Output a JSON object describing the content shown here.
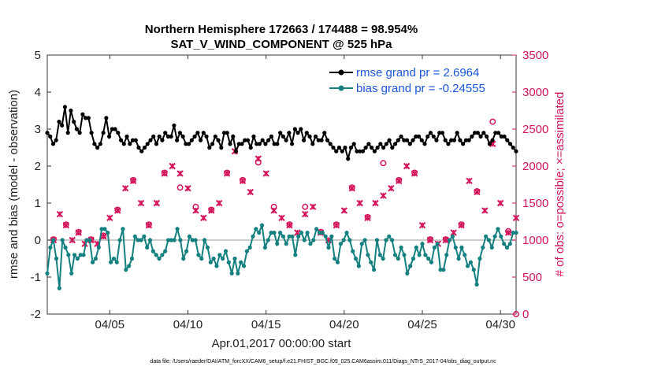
{
  "chart_data": {
    "type": "line",
    "title": "Northern Hemisphere 172663 / 174488 = 98.954%",
    "subtitle": "SAT_V_WIND_COMPONENT @ 525 hPa",
    "xlabel": "Apr.01,2017 00:00:00 start",
    "ylabel": "rmse and bias (model - observation)",
    "y2label": "# of obs: o=possible; ×=assimilated",
    "xlim": [
      1,
      31
    ],
    "ylim": [
      -2,
      5
    ],
    "y2lim": [
      0,
      3500
    ],
    "x_ticks": [
      5,
      10,
      15,
      20,
      25,
      30
    ],
    "x_tick_labels": [
      "04/05",
      "04/10",
      "04/15",
      "04/20",
      "04/25",
      "04/30"
    ],
    "y_ticks": [
      -2,
      -1,
      0,
      1,
      2,
      3,
      4,
      5
    ],
    "y2_ticks": [
      0,
      500,
      1000,
      1500,
      2000,
      2500,
      3000,
      3500
    ],
    "grid": false,
    "legend_position": "top-right",
    "colors": {
      "rmse": "#000000",
      "bias": "#148080",
      "obs": "#d4145a",
      "zero_line": "#cccccc",
      "legend_text": "#1a56db"
    },
    "series": [
      {
        "name": "rmse grand pr = 2.6964",
        "axis": "left",
        "values": [
          2.9,
          2.8,
          2.6,
          2.7,
          3.2,
          3.1,
          3.6,
          2.9,
          3.5,
          3.2,
          3.0,
          2.9,
          3.4,
          3.3,
          3.3,
          2.9,
          2.6,
          2.5,
          2.6,
          2.9,
          3.3,
          2.8,
          3.0,
          3.0,
          2.9,
          2.7,
          2.6,
          2.8,
          2.6,
          2.7,
          2.7,
          2.5,
          2.4,
          2.5,
          2.6,
          2.7,
          2.8,
          2.6,
          2.8,
          2.7,
          2.9,
          2.8,
          2.8,
          3.1,
          2.7,
          2.9,
          2.8,
          2.6,
          2.6,
          2.7,
          2.8,
          2.9,
          2.7,
          2.9,
          2.8,
          2.5,
          2.6,
          2.8,
          2.7,
          2.5,
          2.9,
          2.9,
          2.6,
          2.8,
          2.4,
          2.6,
          2.6,
          2.7,
          2.7,
          2.5,
          2.8,
          2.6,
          2.6,
          2.7,
          2.6,
          2.7,
          2.8,
          2.6,
          2.6,
          2.9,
          2.8,
          2.7,
          2.9,
          2.6,
          3.0,
          2.9,
          3.0,
          2.7,
          2.9,
          2.8,
          2.6,
          2.8,
          2.7,
          2.7,
          2.9,
          2.7,
          2.6,
          2.5,
          2.4,
          2.5,
          2.4,
          2.5,
          2.2,
          2.5,
          2.6,
          2.4,
          2.4,
          2.4,
          2.5,
          2.6,
          2.5,
          2.4,
          2.5,
          2.6,
          2.5,
          2.6,
          2.7,
          2.5,
          2.6,
          2.7,
          2.8,
          2.7,
          2.7,
          2.6,
          2.7,
          2.8,
          2.8,
          2.7,
          2.6,
          2.8,
          2.9,
          2.8,
          2.7,
          2.9,
          2.9,
          2.7,
          2.6,
          2.7,
          2.7,
          2.9,
          2.7,
          2.6,
          2.7,
          2.7,
          2.8,
          2.9,
          2.9,
          2.8,
          2.9,
          2.8,
          2.6,
          2.7,
          2.9,
          2.9,
          2.8,
          2.8,
          2.7,
          2.6,
          2.5,
          2.4
        ]
      },
      {
        "name": "bias grand pr = -0.24555",
        "axis": "left",
        "values": [
          -0.9,
          -0.2,
          0.0,
          -0.5,
          -1.3,
          0.0,
          -0.2,
          -0.4,
          -0.9,
          -0.4,
          -0.5,
          -0.4,
          -0.4,
          0.0,
          0.0,
          -0.6,
          -0.5,
          -0.2,
          0.3,
          0.3,
          0.2,
          -0.6,
          -0.5,
          -0.6,
          0.0,
          0.3,
          -0.8,
          -0.7,
          -0.5,
          0.1,
          0.0,
          0.0,
          0.1,
          -0.2,
          0.0,
          -0.3,
          -0.4,
          -0.5,
          -0.4,
          -0.3,
          0.0,
          0.0,
          0.0,
          0.3,
          0.0,
          -0.5,
          -0.3,
          0.1,
          0.0,
          0.0,
          -0.4,
          -0.5,
          0.0,
          -0.2,
          -0.6,
          -0.5,
          -0.7,
          -0.4,
          -0.5,
          -0.3,
          -0.6,
          -0.9,
          -0.5,
          -0.9,
          -0.6,
          -0.7,
          -0.3,
          -0.2,
          0.1,
          0.3,
          0.2,
          0.4,
          -0.2,
          0.0,
          0.2,
          0.2,
          -0.1,
          0.2,
          0.1,
          -0.1,
          0.1,
          0.1,
          -0.4,
          0.1,
          0.2,
          0.0,
          0.2,
          -0.1,
          0.0,
          0.3,
          0.2,
          0.2,
          0.1,
          -0.2,
          0.1,
          -0.5,
          -0.6,
          -0.1,
          0.0,
          0.2,
          0.0,
          -0.3,
          -0.5,
          -0.7,
          -0.1,
          0.0,
          -0.4,
          -0.6,
          -0.8,
          0.0,
          -0.4,
          -0.5,
          0.0,
          0.1,
          0.0,
          -0.4,
          -0.5,
          -0.2,
          -0.4,
          -0.9,
          -0.7,
          -0.5,
          -0.2,
          -0.4,
          -0.1,
          -0.4,
          -0.5,
          -0.6,
          -0.2,
          -0.1,
          -0.8,
          -0.8,
          -0.4,
          0.0,
          0.1,
          -0.2,
          -0.5,
          -0.2,
          -0.4,
          -0.7,
          -0.6,
          -0.8,
          -1.2,
          -0.5,
          -0.2,
          0.1,
          0.0,
          -0.2,
          0.1,
          0.3,
          0.1,
          -0.1,
          -0.2,
          -0.1,
          0.2,
          0.2
        ]
      },
      {
        "name": "obs assimilated",
        "axis": "right",
        "marker": "x",
        "x": [
          1.4,
          1.8,
          2.2,
          2.6,
          3.0,
          3.4,
          3.8,
          4.2,
          4.6,
          5.0,
          5.5,
          6.0,
          6.5,
          7.0,
          7.5,
          8.0,
          8.5,
          9.0,
          9.5,
          10.0,
          10.5,
          11.0,
          11.5,
          12.0,
          12.5,
          13.0,
          13.5,
          14.0,
          14.5,
          15.0,
          15.5,
          16.0,
          16.5,
          17.0,
          17.5,
          18.0,
          18.5,
          19.0,
          19.5,
          20.0,
          20.5,
          21.0,
          21.5,
          22.0,
          22.5,
          23.0,
          23.5,
          24.0,
          24.5,
          25.0,
          25.5,
          26.0,
          26.5,
          27.0,
          27.5,
          28.0,
          28.5,
          29.0,
          29.5,
          30.0,
          30.5,
          31.0
        ],
        "values": [
          1000,
          1350,
          1200,
          1000,
          1100,
          950,
          1000,
          950,
          1050,
          1300,
          1400,
          1700,
          1800,
          1500,
          1200,
          1500,
          1900,
          2000,
          1900,
          1700,
          1400,
          1300,
          1400,
          1500,
          1900,
          2200,
          1800,
          1650,
          2100,
          1900,
          1400,
          1300,
          1200,
          1100,
          1350,
          1450,
          1100,
          1000,
          1200,
          1400,
          1700,
          1500,
          1300,
          1500,
          1600,
          1700,
          1800,
          2000,
          1900,
          1200,
          1000,
          950,
          1000,
          1100,
          1200,
          1800,
          1650,
          1400,
          2300,
          1500,
          1100,
          1300
        ]
      },
      {
        "name": "obs possible",
        "axis": "right",
        "marker": "o",
        "x": [
          1.4,
          2.2,
          3.0,
          3.8,
          4.6,
          5.5,
          6.5,
          7.5,
          8.5,
          9.5,
          10.5,
          11.5,
          12.5,
          13.5,
          14.5,
          15.5,
          16.5,
          17.5,
          18.5,
          19.5,
          20.5,
          21.5,
          22.5,
          23.5,
          24.5,
          25.5,
          26.5,
          27.5,
          28.5,
          29.5,
          30.5
        ],
        "values": [
          1010,
          1210,
          1110,
          1010,
          1060,
          1410,
          1810,
          1210,
          1910,
          1710,
          1450,
          1410,
          1910,
          1810,
          2050,
          1450,
          1210,
          1450,
          1110,
          1210,
          1710,
          1310,
          2040,
          1810,
          1910,
          1010,
          1010,
          1210,
          1660,
          2600,
          1120
        ]
      }
    ],
    "footer": "data file: /Users/raeder/DAI/ATM_forcXX/CAM6_setup/f.e21.FHIST_BGC.f09_025.CAM6assim.011/Diags_NTrS_2017-04/obs_diag_output.nc"
  }
}
